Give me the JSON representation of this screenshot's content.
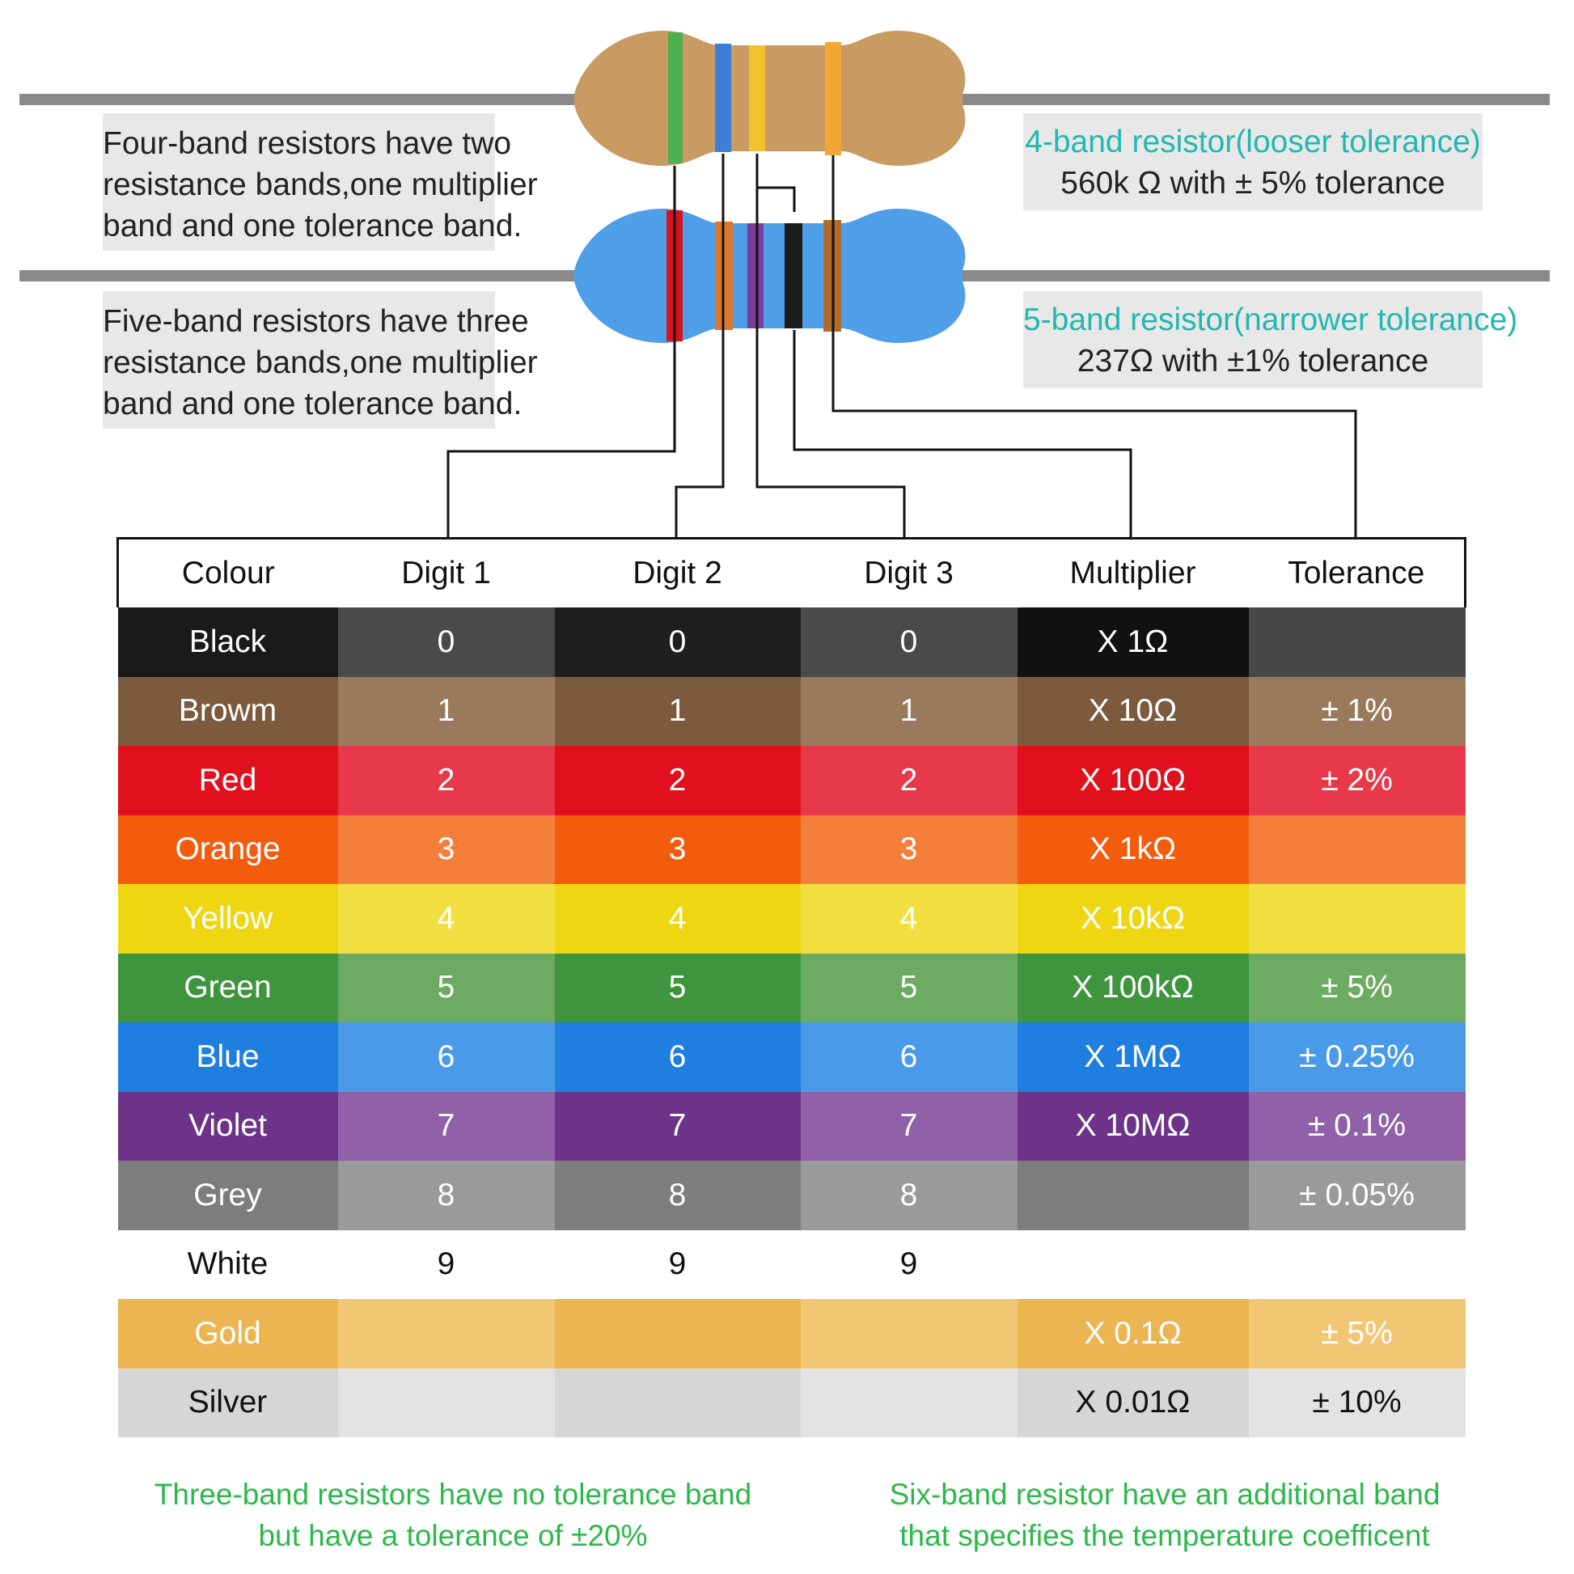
{
  "notes": {
    "four_band_desc": [
      "Four-band resistors have two",
      "resistance bands,one multiplier",
      "band and one tolerance band."
    ],
    "five_band_desc": [
      "Five-band resistors have three",
      "resistance bands,one multiplier",
      "band and one tolerance band."
    ],
    "four_band_title": "4-band resistor(looser tolerance)",
    "four_band_value": "560k Ω with ±  5% tolerance",
    "five_band_title": "5-band resistor(narrower tolerance)",
    "five_band_value": "237Ω with ±1% tolerance"
  },
  "resistors": {
    "four_band": {
      "body_color": "#c99a62",
      "bands": [
        "#4caf50",
        "#3d7fd6",
        "#f2c12e",
        "#f0a834"
      ]
    },
    "five_band": {
      "body_color": "#4f9fe8",
      "bands": [
        "#d7141e",
        "#d9772a",
        "#7a3e9a",
        "#1c1c1c",
        "#b06a2c"
      ]
    },
    "lead_color": "#8a8a8a"
  },
  "table": {
    "headers": [
      "Colour",
      "Digit 1",
      "Digit 2",
      "Digit 3",
      "Multiplier",
      "Tolerance"
    ],
    "rows": [
      {
        "cells": [
          "Black",
          "0",
          "0",
          "0",
          "X 1Ω",
          ""
        ],
        "colors": [
          "#1a1a1a",
          "#4a4a4a",
          "#1f1f1f",
          "#4a4a4a",
          "#111111",
          "#474747"
        ],
        "dark_text": false
      },
      {
        "cells": [
          "Browm",
          "1",
          "1",
          "1",
          "X 10Ω",
          "± 1%"
        ],
        "colors": [
          "#7b5a3d",
          "#9a7a5c",
          "#7b5a3d",
          "#9a7a5c",
          "#7b5a3d",
          "#9a7a5c"
        ],
        "dark_text": false
      },
      {
        "cells": [
          "Red",
          "2",
          "2",
          "2",
          "X 100Ω",
          "± 2%"
        ],
        "colors": [
          "#e0101c",
          "#e8394a",
          "#e0101c",
          "#e8394a",
          "#e0101c",
          "#e8394a"
        ],
        "dark_text": false
      },
      {
        "cells": [
          "Orange",
          "3",
          "3",
          "3",
          "X 1kΩ",
          ""
        ],
        "colors": [
          "#f25c0c",
          "#f47f3a",
          "#f25c0c",
          "#f47f3a",
          "#f25c0c",
          "#f47f3a"
        ],
        "dark_text": false
      },
      {
        "cells": [
          "Yellow",
          "4",
          "4",
          "4",
          "X 10kΩ",
          ""
        ],
        "colors": [
          "#eed612",
          "#f1df40",
          "#eed612",
          "#f1df40",
          "#eed612",
          "#f1df40"
        ],
        "dark_text": false
      },
      {
        "cells": [
          "Green",
          "5",
          "5",
          "5",
          "X 100kΩ",
          "± 5%"
        ],
        "colors": [
          "#3e953e",
          "#6daa62",
          "#3e953e",
          "#6daa62",
          "#3e953e",
          "#6daa62"
        ],
        "dark_text": false
      },
      {
        "cells": [
          "Blue",
          "6",
          "6",
          "6",
          "X 1MΩ",
          "± 0.25%"
        ],
        "colors": [
          "#1f7fe0",
          "#4a9aea",
          "#1f7fe0",
          "#4a9aea",
          "#1f7fe0",
          "#4a9aea"
        ],
        "dark_text": false
      },
      {
        "cells": [
          "Violet",
          "7",
          "7",
          "7",
          "X 10MΩ",
          "± 0.1%"
        ],
        "colors": [
          "#6c3388",
          "#9060a8",
          "#6c3388",
          "#9060a8",
          "#6c3388",
          "#9060a8"
        ],
        "dark_text": false
      },
      {
        "cells": [
          "Grey",
          "8",
          "8",
          "8",
          "",
          "± 0.05%"
        ],
        "colors": [
          "#7d7d7d",
          "#9a9a9a",
          "#7d7d7d",
          "#9a9a9a",
          "#7d7d7d",
          "#9a9a9a"
        ],
        "dark_text": false
      },
      {
        "cells": [
          "White",
          "9",
          "9",
          "9",
          "",
          ""
        ],
        "colors": [
          "#ffffff",
          "#ffffff",
          "#ffffff",
          "#ffffff",
          "#ffffff",
          "#ffffff"
        ],
        "dark_text": true
      },
      {
        "cells": [
          "Gold",
          "",
          "",
          "",
          "X 0.1Ω",
          "± 5%"
        ],
        "colors": [
          "#ebb552",
          "#f1c774",
          "#ebb552",
          "#f1c774",
          "#ebb552",
          "#f1c774"
        ],
        "dark_text": false
      },
      {
        "cells": [
          "Silver",
          "",
          "",
          "",
          "X 0.01Ω",
          "± 10%"
        ],
        "colors": [
          "#d6d6d6",
          "#e3e3e3",
          "#d6d6d6",
          "#e3e3e3",
          "#d6d6d6",
          "#e3e3e3"
        ],
        "dark_text": true
      }
    ]
  },
  "footnotes": {
    "three_band": [
      "Three-band resistors have no tolerance band",
      "but have a tolerance of ±20%"
    ],
    "six_band": [
      "Six-band resistor have an additional band",
      "that specifies the temperature coefficent"
    ]
  }
}
